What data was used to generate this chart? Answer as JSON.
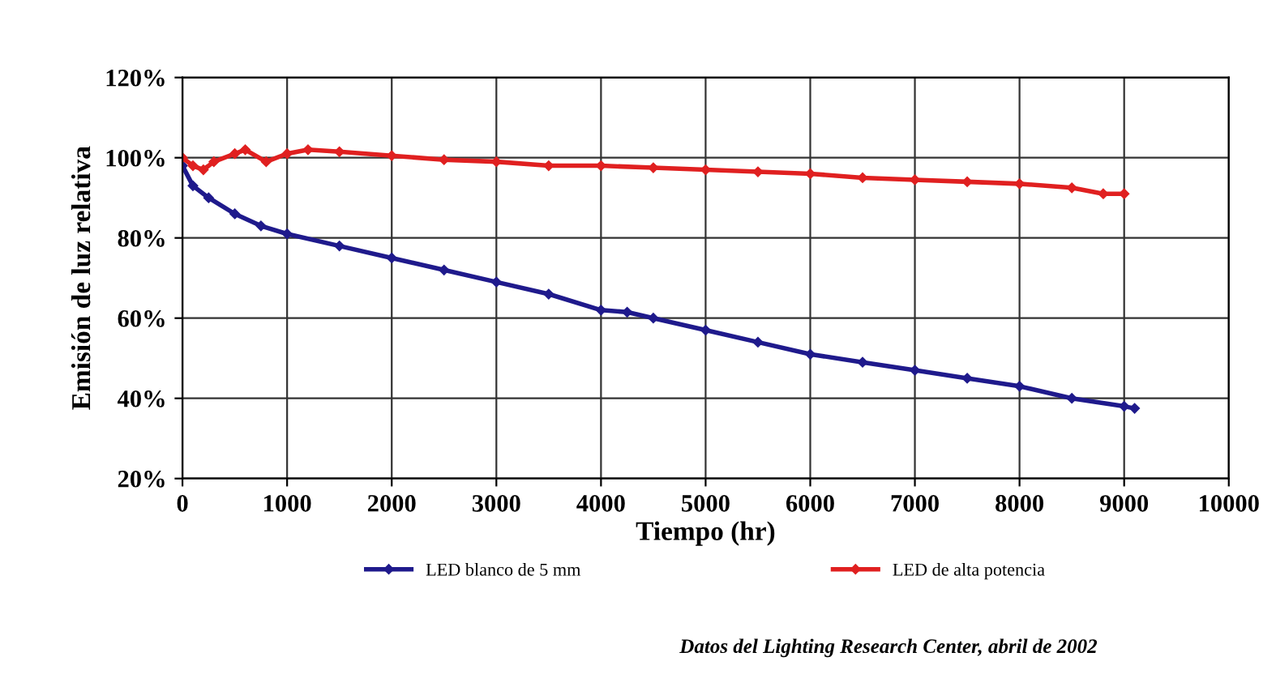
{
  "chart_data": {
    "type": "line",
    "xlabel": "Tiempo (hr)",
    "ylabel": "Emisión de luz relativa",
    "xlim": [
      0,
      10000
    ],
    "xticks": [
      0,
      1000,
      2000,
      3000,
      4000,
      5000,
      6000,
      7000,
      8000,
      9000,
      10000
    ],
    "ylim": [
      20,
      120
    ],
    "yticks": [
      {
        "value": 20,
        "label": "20%"
      },
      {
        "value": 40,
        "label": "40%"
      },
      {
        "value": 60,
        "label": "60%"
      },
      {
        "value": 80,
        "label": "80%"
      },
      {
        "value": 100,
        "label": "100%"
      },
      {
        "value": 120,
        "label": "120%"
      }
    ],
    "grid": true,
    "legend": "bottom",
    "marker": "diamond",
    "line_style": "solid",
    "series": [
      {
        "name": "LED blanco de 5 mm",
        "color": "#1f1a8c",
        "x": [
          0,
          100,
          250,
          500,
          750,
          1000,
          1500,
          2000,
          2500,
          3000,
          3500,
          4000,
          4250,
          4500,
          5000,
          5500,
          6000,
          6500,
          7000,
          7500,
          8000,
          8500,
          9000,
          9100
        ],
        "values": [
          98,
          93,
          90,
          86,
          83,
          81,
          78,
          75,
          72,
          69,
          66,
          62,
          61.5,
          60,
          57,
          54,
          51,
          49,
          47,
          45,
          43,
          40,
          38,
          37.5
        ]
      },
      {
        "name": "LED de alta potencia",
        "color": "#e02020",
        "x": [
          0,
          100,
          200,
          300,
          500,
          600,
          800,
          1000,
          1200,
          1500,
          2000,
          2500,
          3000,
          3500,
          4000,
          4500,
          5000,
          5500,
          6000,
          6500,
          7000,
          7500,
          8000,
          8500,
          8800,
          9000
        ],
        "values": [
          100,
          98,
          97,
          99,
          101,
          102,
          99,
          101,
          102,
          101.5,
          100.5,
          99.5,
          99,
          98,
          98,
          97.5,
          97,
          96.5,
          96,
          95,
          94.5,
          94,
          93.5,
          92.5,
          91,
          91
        ]
      }
    ],
    "annotations": [
      "Datos del Lighting Research Center, abril de 2002"
    ]
  }
}
